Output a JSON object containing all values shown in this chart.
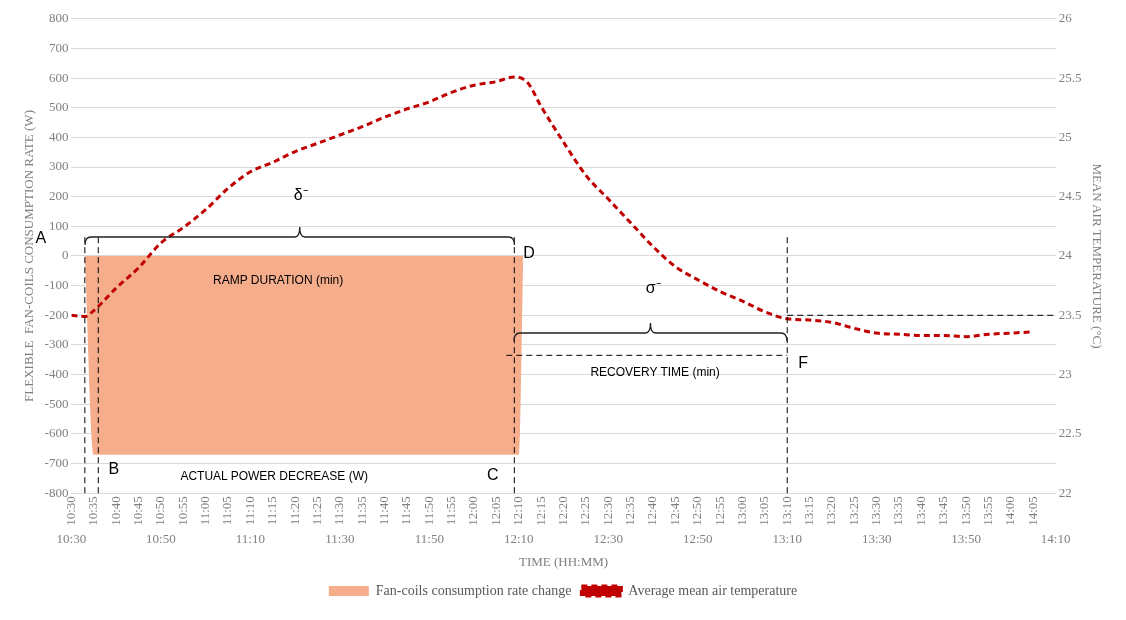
{
  "chart_data": {
    "type": "line",
    "xlabel": "TIME (HH:MM)",
    "ylabel": "FLEXIBLE  FAN-COILS CONSUMPTION RATE (W)",
    "y2label": "MEAN AIR TEMPERATURE (°C)",
    "xlim": [
      10.5,
      14.1667
    ],
    "xticks": [
      {
        "value": 10.5,
        "label": "10:30"
      },
      {
        "value": 10.5833,
        "label": "10:35"
      },
      {
        "value": 10.6667,
        "label": "10:40"
      },
      {
        "value": 10.75,
        "label": "10:45"
      },
      {
        "value": 10.8333,
        "label": "10:50"
      },
      {
        "value": 10.9167,
        "label": "10:55"
      },
      {
        "value": 11,
        "label": "11:00"
      },
      {
        "value": 11.0833,
        "label": "11:05"
      },
      {
        "value": 11.1667,
        "label": "11:10"
      },
      {
        "value": 11.25,
        "label": "11:15"
      },
      {
        "value": 11.3333,
        "label": "11:20"
      },
      {
        "value": 11.4167,
        "label": "11:25"
      },
      {
        "value": 11.5,
        "label": "11:30"
      },
      {
        "value": 11.5833,
        "label": "11:35"
      },
      {
        "value": 11.6667,
        "label": "11:40"
      },
      {
        "value": 11.75,
        "label": "11:45"
      },
      {
        "value": 11.8333,
        "label": "11:50"
      },
      {
        "value": 11.9167,
        "label": "11:55"
      },
      {
        "value": 12,
        "label": "12:00"
      },
      {
        "value": 12.0833,
        "label": "12:05"
      },
      {
        "value": 12.1667,
        "label": "12:10"
      },
      {
        "value": 12.25,
        "label": "12:15"
      },
      {
        "value": 12.3333,
        "label": "12:20"
      },
      {
        "value": 12.4167,
        "label": "12:25"
      },
      {
        "value": 12.5,
        "label": "12:30"
      },
      {
        "value": 12.5833,
        "label": "12:35"
      },
      {
        "value": 12.6667,
        "label": "12:40"
      },
      {
        "value": 12.75,
        "label": "12:45"
      },
      {
        "value": 12.8333,
        "label": "12:50"
      },
      {
        "value": 12.9167,
        "label": "12:55"
      },
      {
        "value": 13,
        "label": "13:00"
      },
      {
        "value": 13.0833,
        "label": "13:05"
      },
      {
        "value": 13.1667,
        "label": "13:10"
      },
      {
        "value": 13.25,
        "label": "13:15"
      },
      {
        "value": 13.3333,
        "label": "13:20"
      },
      {
        "value": 13.4167,
        "label": "13:25"
      },
      {
        "value": 13.5,
        "label": "13:30"
      },
      {
        "value": 13.5833,
        "label": "13:35"
      },
      {
        "value": 13.6667,
        "label": "13:40"
      },
      {
        "value": 13.75,
        "label": "13:45"
      },
      {
        "value": 13.8333,
        "label": "13:50"
      },
      {
        "value": 13.9167,
        "label": "13:55"
      },
      {
        "value": 14,
        "label": "14:00"
      },
      {
        "value": 14.0833,
        "label": "14:05"
      }
    ],
    "x2lim": [
      10.5,
      14.1667
    ],
    "x2ticks": [
      {
        "value": 10.5,
        "label": "10:30"
      },
      {
        "value": 10.8333,
        "label": "10:50"
      },
      {
        "value": 11.1667,
        "label": "11:10"
      },
      {
        "value": 11.5,
        "label": "11:30"
      },
      {
        "value": 11.8333,
        "label": "11:50"
      },
      {
        "value": 12.1667,
        "label": "12:10"
      },
      {
        "value": 12.5,
        "label": "12:30"
      },
      {
        "value": 12.8333,
        "label": "12:50"
      },
      {
        "value": 13.1667,
        "label": "13:10"
      },
      {
        "value": 13.5,
        "label": "13:30"
      },
      {
        "value": 13.8333,
        "label": "13:50"
      },
      {
        "value": 14.1667,
        "label": "14:10"
      }
    ],
    "ylim": [
      -800,
      800
    ],
    "yticks": [
      -800,
      -700,
      -600,
      -500,
      -400,
      -300,
      -200,
      -100,
      0,
      100,
      200,
      300,
      400,
      500,
      600,
      700,
      800
    ],
    "y2lim": [
      22,
      26
    ],
    "y2ticks": [
      22,
      22.5,
      23,
      23.5,
      24,
      24.5,
      25,
      25.5,
      26
    ],
    "grid": "y",
    "legend": "bottom",
    "marker": "none",
    "series": [
      {
        "name": "Fan-coils consumption rate change",
        "type": "area",
        "color": "#f5ad8c",
        "x": [
          10.55,
          10.5833,
          12.1667,
          12.1833
        ],
        "values": [
          0,
          -670,
          -670,
          0
        ]
      },
      {
        "name": "Average mean air temperature",
        "axis": "y2",
        "color": "#c00000",
        "line_style": "dashed",
        "x": [
          10.5,
          10.55,
          10.5833,
          10.6667,
          10.75,
          10.8333,
          10.9167,
          11,
          11.0833,
          11.1667,
          11.25,
          11.3333,
          11.4167,
          11.5,
          11.5833,
          11.6667,
          11.75,
          11.8333,
          11.9167,
          12,
          12.0833,
          12.15,
          12.2,
          12.25,
          12.3333,
          12.4167,
          12.5,
          12.5833,
          12.6667,
          12.75,
          12.8333,
          12.9167,
          13,
          13.0833,
          13.1667,
          13.25,
          13.3333,
          13.4167,
          13.5,
          13.5833,
          13.6667,
          13.75,
          13.8333,
          13.9167,
          14,
          14.0833
        ],
        "values": [
          23.5,
          23.49,
          23.54,
          23.73,
          23.9,
          24.11,
          24.24,
          24.39,
          24.57,
          24.71,
          24.79,
          24.88,
          24.95,
          25.02,
          25.09,
          25.17,
          25.24,
          25.3,
          25.38,
          25.44,
          25.47,
          25.51,
          25.46,
          25.26,
          24.96,
          24.68,
          24.48,
          24.28,
          24.08,
          23.91,
          23.8,
          23.7,
          23.62,
          23.53,
          23.47,
          23.46,
          23.44,
          23.39,
          23.35,
          23.34,
          23.33,
          23.33,
          23.32,
          23.34,
          23.35,
          23.36
        ]
      }
    ],
    "ref_lines": [
      {
        "axis": "x",
        "value": 10.55,
        "color": "#000000",
        "line_style": "dashed"
      },
      {
        "axis": "x",
        "value": 10.6,
        "color": "#000000",
        "line_style": "dashed"
      },
      {
        "axis": "x",
        "value": 12.15,
        "color": "#000000",
        "line_style": "dashed"
      },
      {
        "axis": "x",
        "value": 13.1667,
        "color": "#000000",
        "line_style": "dashed"
      },
      {
        "axis": "y",
        "value": -335,
        "color": "#000000",
        "line_style": "dashed"
      },
      {
        "axis": "y2",
        "value": 23.5,
        "color": "#000000",
        "line_style": "dashed"
      }
    ],
    "annotations": [
      "A",
      "B",
      "C",
      "D",
      {
        "text": "F",
        "x": 13.1667,
        "y": -335
      },
      "RAMP DURATION (min)",
      "δ⁻",
      "σ⁻",
      "ACTUAL POWER DECREASE (W)",
      "RECOVERY TIME (min)"
    ]
  }
}
